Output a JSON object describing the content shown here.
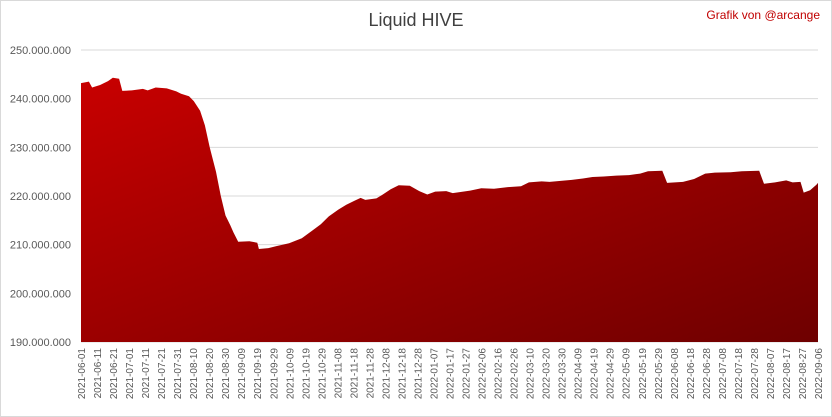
{
  "chart_data": {
    "type": "area",
    "title": "Liquid HIVE",
    "credit": "Grafik von @arcange",
    "color": "#a50000",
    "ylim": [
      190000000,
      250000000
    ],
    "y_ticks": [
      {
        "value": 190000000,
        "label": "190.000.000"
      },
      {
        "value": 200000000,
        "label": "200.000.000"
      },
      {
        "value": 210000000,
        "label": "210.000.000"
      },
      {
        "value": 220000000,
        "label": "220.000.000"
      },
      {
        "value": 230000000,
        "label": "230.000.000"
      },
      {
        "value": 240000000,
        "label": "240.000.000"
      },
      {
        "value": 250000000,
        "label": "250.000.000"
      }
    ],
    "x_ticks": [
      "2021-06-01",
      "2021-06-11",
      "2021-06-21",
      "2021-07-01",
      "2021-07-11",
      "2021-07-21",
      "2021-07-31",
      "2021-08-10",
      "2021-08-20",
      "2021-08-30",
      "2021-09-09",
      "2021-09-19",
      "2021-09-29",
      "2021-10-09",
      "2021-10-19",
      "2021-10-29",
      "2021-11-08",
      "2021-11-18",
      "2021-11-28",
      "2021-12-08",
      "2021-12-18",
      "2021-12-28",
      "2022-01-07",
      "2022-01-17",
      "2022-01-27",
      "2022-02-06",
      "2022-02-16",
      "2022-02-26",
      "2022-03-10",
      "2022-03-20",
      "2022-03-30",
      "2022-04-09",
      "2022-04-19",
      "2022-04-29",
      "2022-05-09",
      "2022-05-19",
      "2022-05-29",
      "2022-06-08",
      "2022-06-18",
      "2022-06-28",
      "2022-07-08",
      "2022-07-18",
      "2022-07-28",
      "2022-08-07",
      "2022-08-17",
      "2022-08-27",
      "2022-09-06"
    ],
    "x_start": "2021-06-01",
    "x_end": "2022-09-08",
    "points": [
      [
        "2021-06-01",
        243200000
      ],
      [
        "2021-06-06",
        243500000
      ],
      [
        "2021-06-08",
        242300000
      ],
      [
        "2021-06-13",
        242800000
      ],
      [
        "2021-06-18",
        243600000
      ],
      [
        "2021-06-21",
        244300000
      ],
      [
        "2021-06-25",
        244100000
      ],
      [
        "2021-06-27",
        241600000
      ],
      [
        "2021-07-03",
        241700000
      ],
      [
        "2021-07-10",
        242000000
      ],
      [
        "2021-07-13",
        241700000
      ],
      [
        "2021-07-18",
        242300000
      ],
      [
        "2021-07-25",
        242100000
      ],
      [
        "2021-07-31",
        241500000
      ],
      [
        "2021-08-03",
        241000000
      ],
      [
        "2021-08-08",
        240500000
      ],
      [
        "2021-08-11",
        239500000
      ],
      [
        "2021-08-15",
        237500000
      ],
      [
        "2021-08-18",
        234500000
      ],
      [
        "2021-08-21",
        230000000
      ],
      [
        "2021-08-25",
        225000000
      ],
      [
        "2021-08-28",
        220000000
      ],
      [
        "2021-08-31",
        216000000
      ],
      [
        "2021-09-03",
        214000000
      ],
      [
        "2021-09-05",
        212500000
      ],
      [
        "2021-09-08",
        210600000
      ],
      [
        "2021-09-15",
        210700000
      ],
      [
        "2021-09-20",
        210400000
      ],
      [
        "2021-09-21",
        209100000
      ],
      [
        "2021-09-27",
        209300000
      ],
      [
        "2021-10-02",
        209700000
      ],
      [
        "2021-10-10",
        210300000
      ],
      [
        "2021-10-18",
        211300000
      ],
      [
        "2021-10-25",
        213000000
      ],
      [
        "2021-10-30",
        214200000
      ],
      [
        "2021-11-04",
        215800000
      ],
      [
        "2021-11-10",
        217200000
      ],
      [
        "2021-11-15",
        218200000
      ],
      [
        "2021-11-20",
        219000000
      ],
      [
        "2021-11-24",
        219600000
      ],
      [
        "2021-11-27",
        219200000
      ],
      [
        "2021-12-04",
        219500000
      ],
      [
        "2021-12-08",
        220300000
      ],
      [
        "2021-12-13",
        221400000
      ],
      [
        "2021-12-18",
        222200000
      ],
      [
        "2021-12-25",
        222100000
      ],
      [
        "2021-12-31",
        221000000
      ],
      [
        "2022-01-05",
        220300000
      ],
      [
        "2022-01-10",
        220900000
      ],
      [
        "2022-01-17",
        221000000
      ],
      [
        "2022-01-21",
        220600000
      ],
      [
        "2022-02-01",
        221100000
      ],
      [
        "2022-02-08",
        221600000
      ],
      [
        "2022-02-16",
        221500000
      ],
      [
        "2022-02-24",
        221800000
      ],
      [
        "2022-03-05",
        222000000
      ],
      [
        "2022-03-10",
        222800000
      ],
      [
        "2022-03-18",
        223000000
      ],
      [
        "2022-03-23",
        222900000
      ],
      [
        "2022-03-30",
        223100000
      ],
      [
        "2022-04-06",
        223300000
      ],
      [
        "2022-04-13",
        223600000
      ],
      [
        "2022-04-19",
        223900000
      ],
      [
        "2022-04-26",
        224000000
      ],
      [
        "2022-05-04",
        224200000
      ],
      [
        "2022-05-12",
        224300000
      ],
      [
        "2022-05-19",
        224600000
      ],
      [
        "2022-05-24",
        225100000
      ],
      [
        "2022-06-02",
        225200000
      ],
      [
        "2022-06-05",
        222700000
      ],
      [
        "2022-06-15",
        222900000
      ],
      [
        "2022-06-22",
        223500000
      ],
      [
        "2022-06-29",
        224600000
      ],
      [
        "2022-07-05",
        224800000
      ],
      [
        "2022-07-15",
        224900000
      ],
      [
        "2022-07-22",
        225100000
      ],
      [
        "2022-08-02",
        225200000
      ],
      [
        "2022-08-05",
        222500000
      ],
      [
        "2022-08-12",
        222800000
      ],
      [
        "2022-08-19",
        223200000
      ],
      [
        "2022-08-23",
        222800000
      ],
      [
        "2022-08-28",
        222900000
      ],
      [
        "2022-08-30",
        220700000
      ],
      [
        "2022-09-03",
        221200000
      ],
      [
        "2022-09-07",
        222300000
      ],
      [
        "2022-09-08",
        222700000
      ]
    ]
  }
}
